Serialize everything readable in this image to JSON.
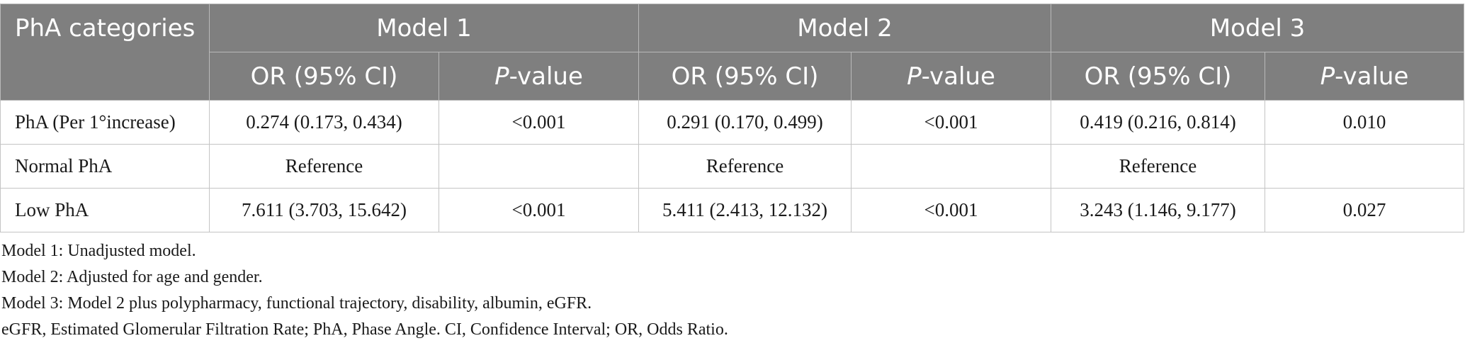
{
  "header": {
    "row_head": "PhA categories",
    "models": [
      "Model 1",
      "Model 2",
      "Model 3"
    ],
    "or_label": "OR (95% CI)",
    "p_italic": "P",
    "p_suffix": "-value"
  },
  "rows": [
    {
      "label": "PhA (Per 1°increase)",
      "cells": [
        "0.274 (0.173, 0.434)",
        "<0.001",
        "0.291 (0.170, 0.499)",
        "<0.001",
        "0.419 (0.216, 0.814)",
        "0.010"
      ]
    },
    {
      "label": "Normal PhA",
      "cells": [
        "Reference",
        "",
        "Reference",
        "",
        "Reference",
        ""
      ]
    },
    {
      "label": "Low PhA",
      "cells": [
        "7.611 (3.703, 15.642)",
        "<0.001",
        "5.411 (2.413, 12.132)",
        "<0.001",
        "3.243 (1.146, 9.177)",
        "0.027"
      ]
    }
  ],
  "footnotes": [
    "Model 1: Unadjusted model.",
    "Model 2: Adjusted for age and gender.",
    "Model 3: Model 2 plus polypharmacy, functional trajectory, disability, albumin, eGFR.",
    "eGFR, Estimated Glomerular Filtration Rate; PhA, Phase Angle. CI, Confidence Interval; OR, Odds Ratio."
  ]
}
